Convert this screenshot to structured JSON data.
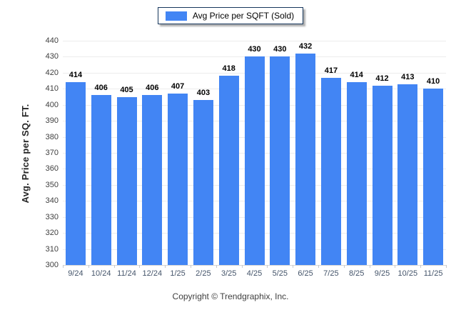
{
  "legend": {
    "label": "Avg Price per SQFT (Sold)",
    "swatch_color": "#4285f4"
  },
  "footer": {
    "copyright": "Copyright © Trendgraphix, Inc."
  },
  "chart_data": {
    "type": "bar",
    "title": "",
    "xlabel": "",
    "ylabel": "Avg. Price per SQ. FT.",
    "categories": [
      "9/24",
      "10/24",
      "11/24",
      "12/24",
      "1/25",
      "2/25",
      "3/25",
      "4/25",
      "5/25",
      "6/25",
      "7/25",
      "8/25",
      "9/25",
      "10/25",
      "11/25"
    ],
    "values": [
      414,
      406,
      405,
      406,
      407,
      403,
      418,
      430,
      430,
      432,
      417,
      414,
      412,
      413,
      410
    ],
    "series_name": "Avg Price per SQFT (Sold)",
    "ylim": [
      300,
      440
    ],
    "ytick_step": 10,
    "grid": true,
    "value_labels": true,
    "legend_position": "top-center",
    "bar_color": "#4285f4",
    "gridline_color": "#ececec"
  }
}
